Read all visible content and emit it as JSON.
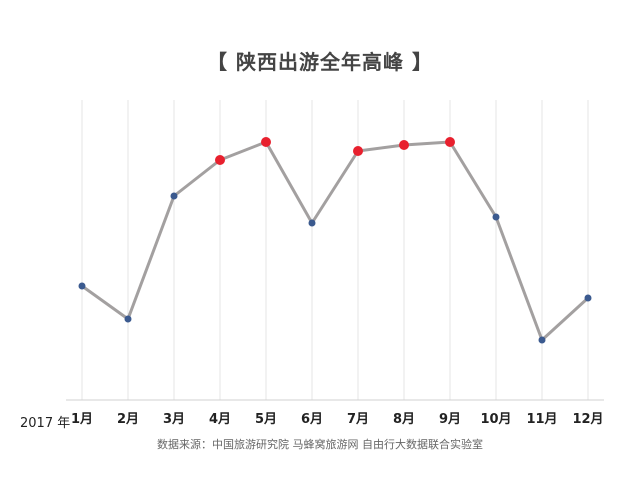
{
  "chart_data": {
    "type": "line",
    "title": "【 陕西出游全年高峰 】",
    "year_label": "2017 年",
    "categories": [
      "1月",
      "2月",
      "3月",
      "4月",
      "5月",
      "6月",
      "7月",
      "8月",
      "9月",
      "10月",
      "11月",
      "12月"
    ],
    "values": [
      38,
      27,
      68,
      80,
      86,
      59,
      83,
      85,
      86,
      61,
      20,
      34
    ],
    "highlighted": [
      false,
      false,
      false,
      true,
      true,
      false,
      true,
      true,
      true,
      false,
      false,
      false
    ],
    "ylim": [
      0,
      100
    ],
    "grid": "vertical",
    "colors": {
      "line": "#a3a0a0",
      "point": "#3b5a8f",
      "highlight": "#e8202e",
      "grid": "#e6e6e6"
    },
    "source": "数据来源：中国旅游研究院 马蜂窝旅游网 自由行大数据联合实验室"
  }
}
